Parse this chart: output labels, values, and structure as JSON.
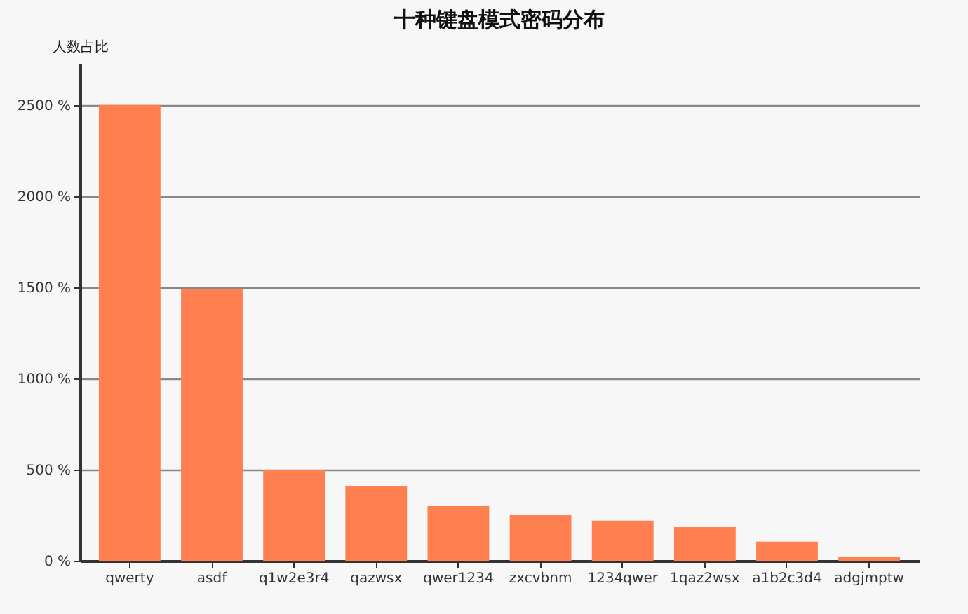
{
  "chart_data": {
    "type": "bar",
    "title": "十种键盘模式密码分布",
    "ylabel": "人数占比",
    "categories": [
      "qwerty",
      "asdf",
      "q1w2e3r4",
      "qazwsx",
      "qwer1234",
      "zxcvbnm",
      "1234qwer",
      "1qaz2wsx",
      "a1b2c3d4",
      "adgjmptw"
    ],
    "values": [
      2500,
      1490,
      500,
      410,
      300,
      250,
      220,
      185,
      105,
      20
    ],
    "color": "#ff7f50",
    "ylim": [
      0,
      2730
    ],
    "yticks": [
      {
        "value": 0,
        "label": "0 %"
      },
      {
        "value": 500,
        "label": "500 %"
      },
      {
        "value": 1000,
        "label": "1000 %"
      },
      {
        "value": 1500,
        "label": "1500 %"
      },
      {
        "value": 2000,
        "label": "2000 %"
      },
      {
        "value": 2500,
        "label": "2500 %"
      }
    ],
    "grid": "y"
  }
}
